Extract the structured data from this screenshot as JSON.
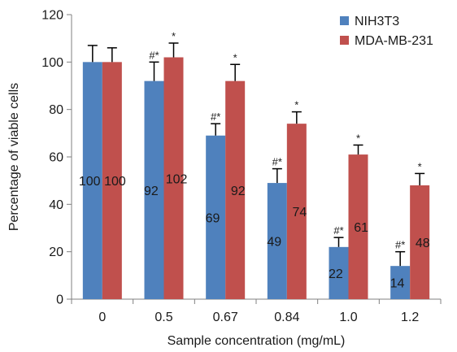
{
  "chart_data": {
    "type": "bar",
    "title": "",
    "xlabel": "Sample concentration (mg/mL)",
    "ylabel": "Percentage of viable cells",
    "categories": [
      "0",
      "0.5",
      "0.67",
      "0.84",
      "1.0",
      "1.2"
    ],
    "ylim": [
      0,
      120
    ],
    "yticks": [
      "0",
      "20",
      "40",
      "60",
      "80",
      "100",
      "120"
    ],
    "grid": false,
    "legend_position": "top-right",
    "series": [
      {
        "name": "NIH3T3",
        "color": "#4f81bd",
        "values": [
          100,
          92,
          69,
          49,
          22,
          14
        ],
        "labels": [
          "100",
          "92",
          "69",
          "49",
          "22",
          "14"
        ],
        "error": [
          7,
          8,
          5,
          6,
          4,
          6
        ],
        "significance": [
          "",
          "#*",
          "#*",
          "#*",
          "#*",
          "#*"
        ]
      },
      {
        "name": "MDA-MB-231",
        "color": "#c0504d",
        "values": [
          100,
          102,
          92,
          74,
          61,
          48
        ],
        "labels": [
          "100",
          "102",
          "92",
          "74",
          "61",
          "48"
        ],
        "error": [
          6,
          6,
          7,
          5,
          4,
          5
        ],
        "significance": [
          "",
          "*",
          "*",
          "*",
          "*",
          "*"
        ]
      }
    ]
  }
}
